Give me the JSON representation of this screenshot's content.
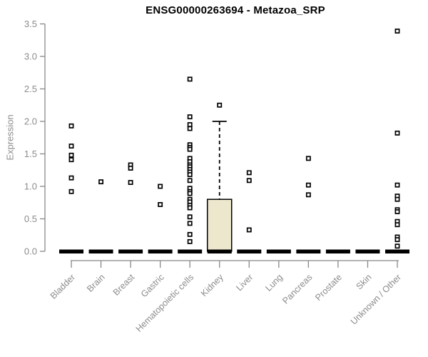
{
  "chart_data": {
    "type": "boxplot",
    "title": "ENSG00000263694 - Metazoa_SRP",
    "ylabel": "Expression",
    "xlabel": "",
    "ylim": [
      0,
      3.5
    ],
    "yticks": [
      0.0,
      0.5,
      1.0,
      1.5,
      2.0,
      2.5,
      3.0,
      3.5
    ],
    "grid": false,
    "legend": "none",
    "categories": [
      "Bladder",
      "Brain",
      "Breast",
      "Gastric",
      "Hematopoietic cells",
      "Kidney",
      "Liver",
      "Lung",
      "Pancreas",
      "Prostate",
      "Skin",
      "Unknown / Other"
    ],
    "series": [
      {
        "category": "Bladder",
        "q1": 0,
        "median": 0,
        "q3": 0,
        "whisker_low": 0,
        "whisker_high": 0,
        "outliers": [
          1.93,
          1.62,
          1.48,
          1.41,
          1.13,
          0.92
        ]
      },
      {
        "category": "Brain",
        "q1": 0,
        "median": 0,
        "q3": 0,
        "whisker_low": 0,
        "whisker_high": 0,
        "outliers": [
          1.07
        ]
      },
      {
        "category": "Breast",
        "q1": 0,
        "median": 0,
        "q3": 0,
        "whisker_low": 0,
        "whisker_high": 0,
        "outliers": [
          1.33,
          1.28,
          1.06
        ]
      },
      {
        "category": "Gastric",
        "q1": 0,
        "median": 0,
        "q3": 0,
        "whisker_low": 0,
        "whisker_high": 0,
        "outliers": [
          1.0,
          0.72
        ]
      },
      {
        "category": "Hematopoietic cells",
        "q1": 0,
        "median": 0,
        "q3": 0,
        "whisker_low": 0,
        "whisker_high": 0,
        "outliers": [
          2.65,
          2.07,
          1.95,
          1.89,
          1.64,
          1.6,
          1.57,
          1.43,
          1.38,
          1.33,
          1.3,
          1.26,
          1.22,
          1.18,
          1.09,
          0.97,
          0.92,
          0.89,
          0.8,
          0.76,
          0.71,
          0.67,
          0.53,
          0.43,
          0.26,
          0.15
        ]
      },
      {
        "category": "Kidney",
        "q1": 0,
        "median": 0,
        "q3": 0.8,
        "whisker_low": 0,
        "whisker_high": 2.0,
        "outliers": [
          2.25
        ]
      },
      {
        "category": "Liver",
        "q1": 0,
        "median": 0,
        "q3": 0,
        "whisker_low": 0,
        "whisker_high": 0,
        "outliers": [
          1.21,
          1.09,
          0.33
        ]
      },
      {
        "category": "Lung",
        "q1": 0,
        "median": 0,
        "q3": 0,
        "whisker_low": 0,
        "whisker_high": 0,
        "outliers": []
      },
      {
        "category": "Pancreas",
        "q1": 0,
        "median": 0,
        "q3": 0,
        "whisker_low": 0,
        "whisker_high": 0,
        "outliers": [
          1.43,
          1.02,
          0.87
        ]
      },
      {
        "category": "Prostate",
        "q1": 0,
        "median": 0,
        "q3": 0,
        "whisker_low": 0,
        "whisker_high": 0,
        "outliers": []
      },
      {
        "category": "Skin",
        "q1": 0,
        "median": 0,
        "q3": 0,
        "whisker_low": 0,
        "whisker_high": 0,
        "outliers": []
      },
      {
        "category": "Unknown / Other",
        "q1": 0,
        "median": 0,
        "q3": 0,
        "whisker_low": 0,
        "whisker_high": 0,
        "outliers": [
          3.39,
          1.82,
          1.02,
          0.85,
          0.8,
          0.64,
          0.61,
          0.46,
          0.41,
          0.22,
          0.18,
          0.08
        ]
      }
    ],
    "colors": {
      "title": "#000000",
      "axis": "#888888",
      "tick_text": "#8c8c8c",
      "box_fill": "#ece7cd",
      "box_stroke": "#000000",
      "point": "#000000",
      "background": "#ffffff"
    }
  }
}
